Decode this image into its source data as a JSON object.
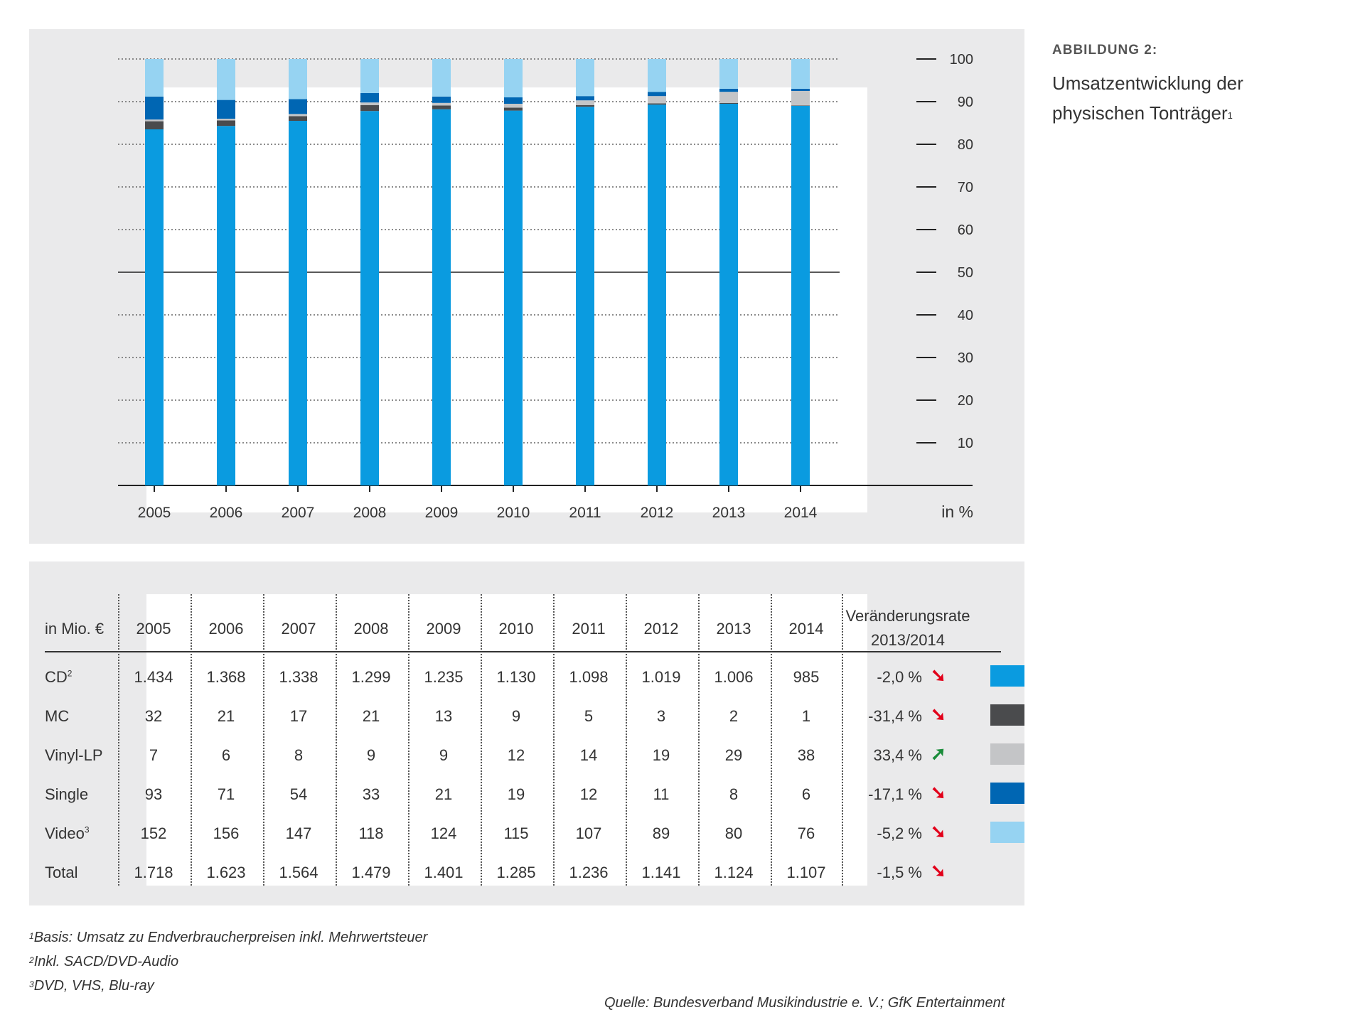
{
  "figure": {
    "label": "ABBILDUNG 2:",
    "title_line1": "Umsatzentwicklung der",
    "title_line2": "physischen Tonträger",
    "title_footnote": "1"
  },
  "chart_data": {
    "type": "bar",
    "stacked": true,
    "title": "Umsatzentwicklung der physischen Tonträger",
    "categories": [
      "2005",
      "2006",
      "2007",
      "2008",
      "2009",
      "2010",
      "2011",
      "2012",
      "2013",
      "2014"
    ],
    "unit_label": "in %",
    "ylim": [
      0,
      100
    ],
    "yticks": [
      10,
      20,
      30,
      40,
      50,
      60,
      70,
      80,
      90,
      100
    ],
    "series": [
      {
        "name": "CD",
        "color": "#0a9be0",
        "values": [
          83.5,
          84.3,
          85.5,
          87.8,
          88.2,
          87.9,
          88.8,
          89.3,
          89.5,
          89.0
        ]
      },
      {
        "name": "MC",
        "color": "#4a4b4d",
        "values": [
          1.9,
          1.3,
          1.1,
          1.4,
          0.9,
          0.7,
          0.4,
          0.3,
          0.2,
          0.1
        ]
      },
      {
        "name": "Vinyl-LP",
        "color": "#c4c5c7",
        "values": [
          0.4,
          0.4,
          0.5,
          0.6,
          0.6,
          0.9,
          1.1,
          1.7,
          2.6,
          3.4
        ]
      },
      {
        "name": "Single",
        "color": "#0066b3",
        "values": [
          5.4,
          4.4,
          3.5,
          2.2,
          1.5,
          1.5,
          1.0,
          1.0,
          0.7,
          0.5
        ]
      },
      {
        "name": "Video",
        "color": "#96d3f2",
        "values": [
          8.8,
          9.6,
          9.4,
          8.0,
          8.8,
          9.0,
          8.7,
          7.7,
          7.0,
          7.0
        ]
      }
    ]
  },
  "table": {
    "unit_header": "in Mio. €",
    "years": [
      "2005",
      "2006",
      "2007",
      "2008",
      "2009",
      "2010",
      "2011",
      "2012",
      "2013",
      "2014"
    ],
    "change_header_line1": "Veränderungsrate",
    "change_header_line2": "2013/2014",
    "rows": [
      {
        "label": "CD",
        "sup": "2",
        "values": [
          "1.434",
          "1.368",
          "1.338",
          "1.299",
          "1.235",
          "1.130",
          "1.098",
          "1.019",
          "1.006",
          "985"
        ],
        "change": "-2,0 %",
        "trend": "down",
        "arrow": "➘",
        "color": "#0a9be0"
      },
      {
        "label": "MC",
        "sup": "",
        "values": [
          "32",
          "21",
          "17",
          "21",
          "13",
          "9",
          "5",
          "3",
          "2",
          "1"
        ],
        "change": "-31,4 %",
        "trend": "down",
        "arrow": "➘",
        "color": "#4a4b4d"
      },
      {
        "label": "Vinyl-LP",
        "sup": "",
        "values": [
          "7",
          "6",
          "8",
          "9",
          "9",
          "12",
          "14",
          "19",
          "29",
          "38"
        ],
        "change": "33,4 %",
        "trend": "up",
        "arrow": "➚",
        "color": "#c4c5c7"
      },
      {
        "label": "Single",
        "sup": "",
        "values": [
          "93",
          "71",
          "54",
          "33",
          "21",
          "19",
          "12",
          "11",
          "8",
          "6"
        ],
        "change": "-17,1 %",
        "trend": "down",
        "arrow": "➘",
        "color": "#0066b3"
      },
      {
        "label": "Video",
        "sup": "3",
        "values": [
          "152",
          "156",
          "147",
          "118",
          "124",
          "115",
          "107",
          "89",
          "80",
          "76"
        ],
        "change": "-5,2 %",
        "trend": "down",
        "arrow": "➘",
        "color": "#96d3f2"
      },
      {
        "label": "Total",
        "sup": "",
        "values": [
          "1.718",
          "1.623",
          "1.564",
          "1.479",
          "1.401",
          "1.285",
          "1.236",
          "1.141",
          "1.124",
          "1.107"
        ],
        "change": "-1,5 %",
        "trend": "down",
        "arrow": "➘",
        "color": ""
      }
    ],
    "trend_colors": {
      "down": "#e2001a",
      "up": "#1a8c3a"
    }
  },
  "footnotes": [
    {
      "sup": "1",
      "text": "Basis: Umsatz zu Endverbraucherpreisen inkl. Mehrwertsteuer"
    },
    {
      "sup": "2",
      "text": "Inkl. SACD/DVD-Audio"
    },
    {
      "sup": "3",
      "text": "DVD, VHS, Blu-ray"
    }
  ],
  "source": "Quelle: Bundesverband Musikindustrie e. V.; GfK Entertainment"
}
